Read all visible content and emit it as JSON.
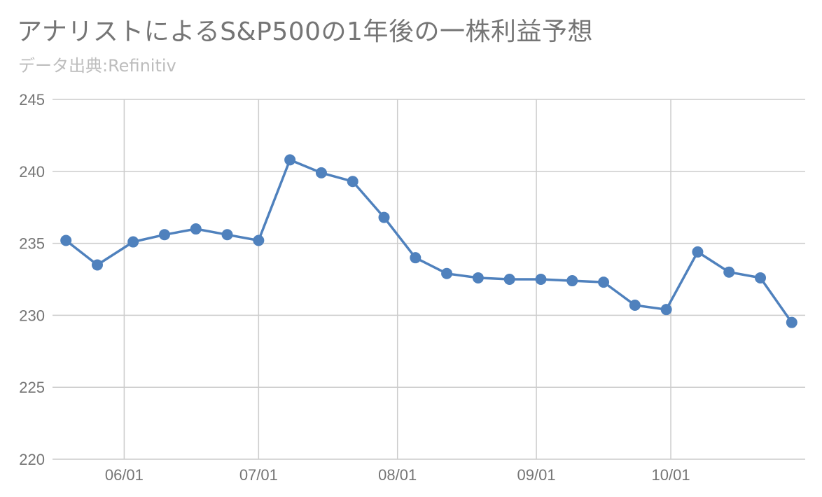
{
  "chart_data": {
    "type": "line",
    "title": "アナリストによるS&P500の1年後の一株利益予想",
    "subtitle": "データ出典:Refinitiv",
    "xlabel": "",
    "ylabel": "",
    "ylim": [
      220,
      245
    ],
    "yticks": [
      "245",
      "240",
      "235",
      "230",
      "225",
      "220"
    ],
    "xticks": [
      {
        "label": "06/01",
        "x": "06/01"
      },
      {
        "label": "07/01",
        "x": "07/01"
      },
      {
        "label": "08/01",
        "x": "08/01"
      },
      {
        "label": "09/01",
        "x": "09/01"
      },
      {
        "label": "10/01",
        "x": "10/01"
      }
    ],
    "grid": true,
    "legend": "none",
    "series": [
      {
        "color": "#4f81bd",
        "points": [
          {
            "x": "05/19",
            "y": 235.2
          },
          {
            "x": "05/26",
            "y": 233.5
          },
          {
            "x": "06/03",
            "y": 235.1
          },
          {
            "x": "06/10",
            "y": 235.6
          },
          {
            "x": "06/17",
            "y": 236.0
          },
          {
            "x": "06/24",
            "y": 235.6
          },
          {
            "x": "07/01",
            "y": 235.2
          },
          {
            "x": "07/08",
            "y": 240.8
          },
          {
            "x": "07/15",
            "y": 239.9
          },
          {
            "x": "07/22",
            "y": 239.3
          },
          {
            "x": "07/29",
            "y": 236.8
          },
          {
            "x": "08/05",
            "y": 234.0
          },
          {
            "x": "08/12",
            "y": 232.9
          },
          {
            "x": "08/19",
            "y": 232.6
          },
          {
            "x": "08/26",
            "y": 232.5
          },
          {
            "x": "09/02",
            "y": 232.5
          },
          {
            "x": "09/09",
            "y": 232.4
          },
          {
            "x": "09/16",
            "y": 232.3
          },
          {
            "x": "09/23",
            "y": 230.7
          },
          {
            "x": "09/30",
            "y": 230.4
          },
          {
            "x": "10/07",
            "y": 234.4
          },
          {
            "x": "10/14",
            "y": 233.0
          },
          {
            "x": "10/21",
            "y": 232.6
          },
          {
            "x": "10/28",
            "y": 229.5
          }
        ]
      }
    ]
  }
}
